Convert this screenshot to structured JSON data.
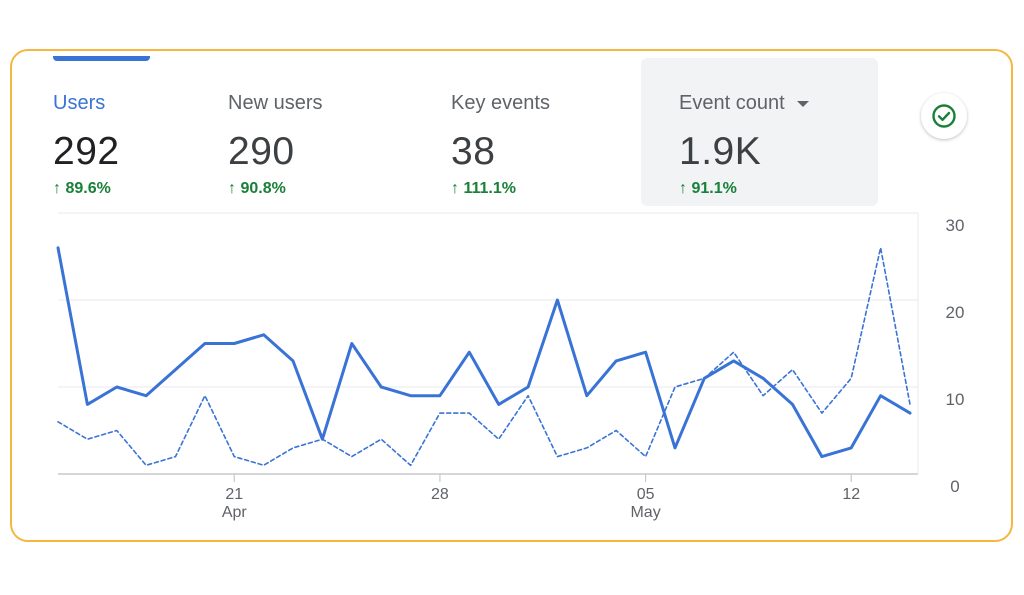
{
  "metrics": [
    {
      "label": "Users",
      "value": "292",
      "delta": "89.6%"
    },
    {
      "label": "New users",
      "value": "290",
      "delta": "90.8%"
    },
    {
      "label": "Key events",
      "value": "38",
      "delta": "111.1%"
    },
    {
      "label": "Event count",
      "value": "1.9K",
      "delta": "91.1%"
    }
  ],
  "icons": {
    "status": "check-circle-icon",
    "trend": "arrow-up-icon",
    "dropdown": "caret-down-icon"
  },
  "colors": {
    "primary": "#3a73d6",
    "positive": "#188038",
    "border": "#f4b740"
  },
  "chart_data": {
    "type": "line",
    "x": [
      "Apr 15",
      "Apr 16",
      "Apr 17",
      "Apr 18",
      "Apr 19",
      "Apr 20",
      "Apr 21",
      "Apr 22",
      "Apr 23",
      "Apr 24",
      "Apr 25",
      "Apr 26",
      "Apr 27",
      "Apr 28",
      "Apr 29",
      "Apr 30",
      "May 01",
      "May 02",
      "May 03",
      "May 04",
      "May 05",
      "May 06",
      "May 07",
      "May 08",
      "May 09",
      "May 10",
      "May 11",
      "May 12",
      "May 13",
      "May 14"
    ],
    "x_ticks": [
      {
        "day": "21",
        "month": "Apr",
        "index": 6
      },
      {
        "day": "28",
        "month": "",
        "index": 13
      },
      {
        "day": "05",
        "month": "May",
        "index": 20
      },
      {
        "day": "12",
        "month": "",
        "index": 27
      }
    ],
    "y_ticks": [
      "0",
      "10",
      "20",
      "30"
    ],
    "ylim": [
      0,
      30
    ],
    "grid": true,
    "series": [
      {
        "style": "solid",
        "values": [
          26,
          8,
          10,
          9,
          12,
          15,
          15,
          16,
          13,
          4,
          15,
          10,
          9,
          9,
          14,
          8,
          10,
          20,
          9,
          13,
          14,
          3,
          11,
          13,
          11,
          8,
          2,
          3,
          9,
          7
        ]
      },
      {
        "style": "dashed",
        "values": [
          6,
          4,
          5,
          1,
          2,
          9,
          2,
          1,
          3,
          4,
          2,
          4,
          1,
          7,
          7,
          4,
          9,
          2,
          3,
          5,
          2,
          10,
          11,
          14,
          9,
          12,
          7,
          11,
          26,
          8
        ]
      }
    ]
  }
}
